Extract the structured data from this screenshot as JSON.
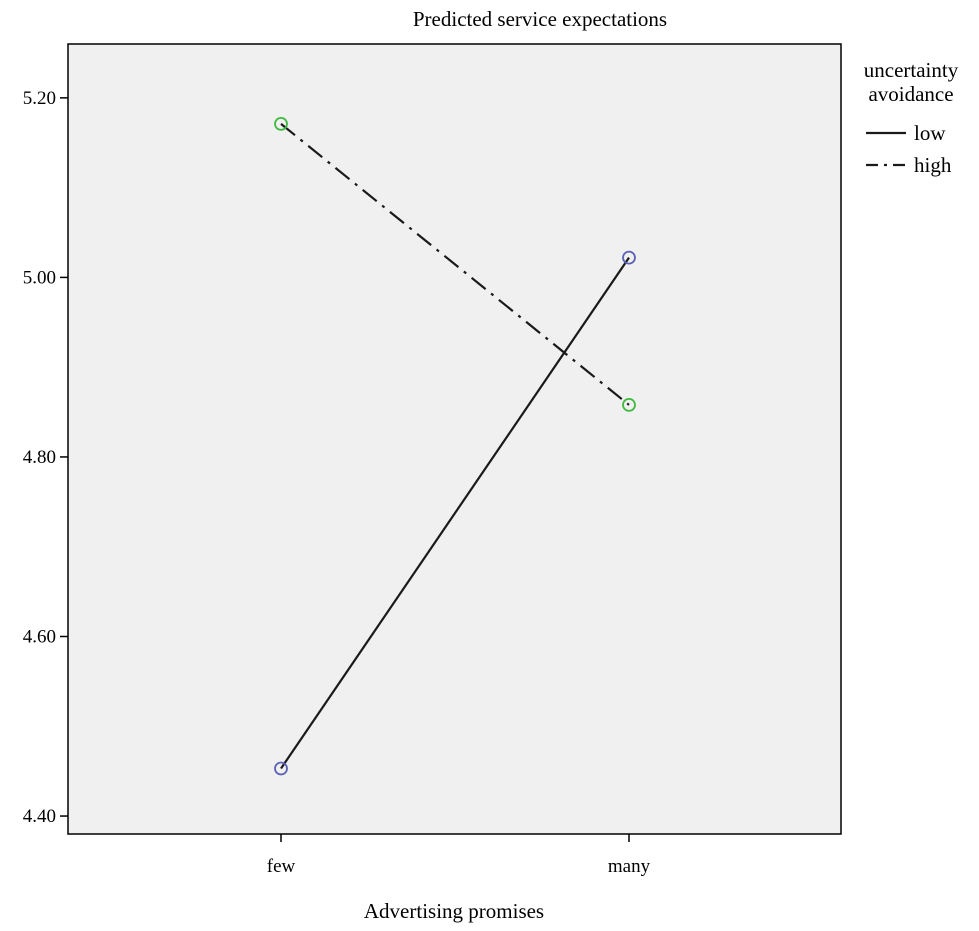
{
  "chart_data": {
    "type": "line",
    "title": "Predicted service expectations",
    "xlabel": "Advertising promises",
    "ylabel": "",
    "categories": [
      "few",
      "many"
    ],
    "ylim": [
      4.38,
      5.26
    ],
    "yticks": [
      "4.40",
      "4.60",
      "4.80",
      "5.00",
      "5.20"
    ],
    "grid": false,
    "legend": {
      "title": [
        "uncertainty",
        "avoidance"
      ],
      "placement": "right"
    },
    "series": [
      {
        "name": "low",
        "values": [
          4.453,
          5.022
        ],
        "line_style": "solid",
        "line_color": "#1a1a1a",
        "marker_color": "#5a63b5"
      },
      {
        "name": "high",
        "values": [
          5.171,
          4.858
        ],
        "line_style": "dash-dot",
        "line_color": "#1a1a1a",
        "marker_color": "#3dbb3d"
      }
    ],
    "plot_background": "#f0f0f0"
  }
}
